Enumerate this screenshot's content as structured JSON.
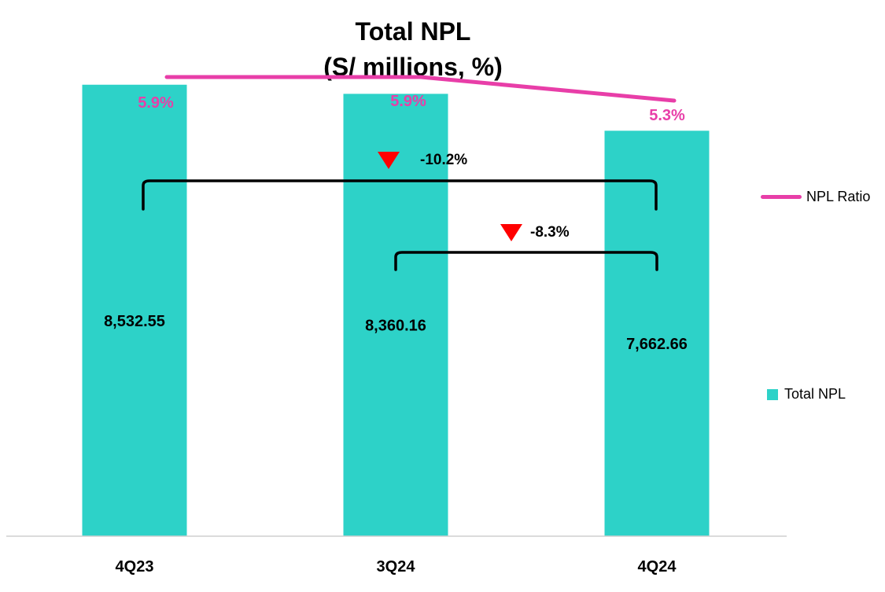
{
  "chart_data": {
    "type": "bar",
    "title": "Total NPL",
    "subtitle": "(S/ millions, %)",
    "categories": [
      "4Q23",
      "3Q24",
      "4Q24"
    ],
    "series": [
      {
        "name": "Total NPL",
        "kind": "bar",
        "values": [
          8532.55,
          8360.16,
          7662.66
        ],
        "labels": [
          "8,532.55",
          "8,360.16",
          "7,662.66"
        ],
        "color": "#2dd2c8"
      },
      {
        "name": "NPL Ratio",
        "kind": "line",
        "values": [
          5.9,
          5.9,
          5.3
        ],
        "labels": [
          "5.9%",
          "5.9%",
          "5.3%"
        ],
        "color": "#e83ea8"
      }
    ],
    "changes": [
      {
        "label": "-10.2%",
        "from": "4Q23",
        "to": "4Q24",
        "direction": "down"
      },
      {
        "label": "-8.3%",
        "from": "3Q24",
        "to": "4Q24",
        "direction": "down"
      }
    ],
    "ylim": [
      0,
      10000
    ],
    "ratio_range": [
      4.5,
      6.3
    ],
    "legend": {
      "position": "right",
      "items": [
        "NPL Ratio",
        "Total NPL"
      ]
    }
  },
  "colors": {
    "accent": "#2dd2c8",
    "ratio": "#e83ea8",
    "down_arrow": "#ff0000"
  }
}
